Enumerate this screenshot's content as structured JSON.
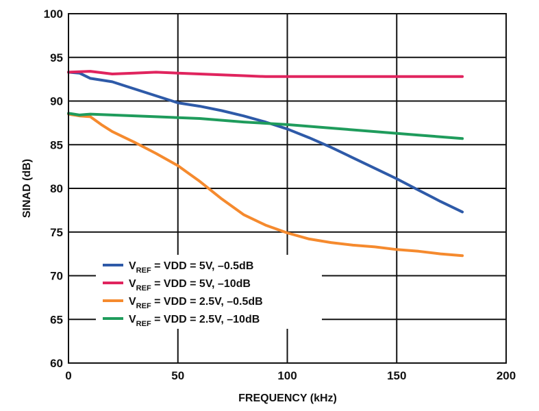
{
  "chart_data": {
    "type": "line",
    "title": "",
    "xlabel": "FREQUENCY (kHz)",
    "ylabel": "SINAD (dB)",
    "xlim": [
      0,
      200
    ],
    "ylim": [
      60,
      100
    ],
    "xticks": [
      "0",
      "50",
      "100",
      "150",
      "200"
    ],
    "yticks": [
      "60",
      "65",
      "70",
      "75",
      "80",
      "85",
      "90",
      "95",
      "100"
    ],
    "grid": true,
    "legend_position": "bottom-left",
    "series": [
      {
        "name_main": "V",
        "name_sub": "REF",
        "name_rest": " = VDD = 5V, –0.5dB",
        "color": "#2e5aa8",
        "x": [
          0,
          5,
          10,
          20,
          30,
          40,
          50,
          60,
          70,
          80,
          90,
          100,
          110,
          120,
          130,
          140,
          150,
          160,
          170,
          180
        ],
        "y": [
          93.3,
          93.2,
          92.6,
          92.2,
          91.4,
          90.6,
          89.8,
          89.4,
          88.9,
          88.3,
          87.6,
          86.8,
          85.8,
          84.7,
          83.5,
          82.3,
          81.1,
          79.8,
          78.5,
          77.3
        ]
      },
      {
        "name_main": "V",
        "name_sub": "REF",
        "name_rest": " = VDD = 5V, –10dB",
        "color": "#e0245e",
        "x": [
          0,
          10,
          20,
          30,
          40,
          50,
          60,
          70,
          80,
          90,
          100,
          120,
          140,
          160,
          180
        ],
        "y": [
          93.3,
          93.4,
          93.1,
          93.2,
          93.3,
          93.2,
          93.1,
          93.0,
          92.9,
          92.8,
          92.8,
          92.8,
          92.8,
          92.8,
          92.8
        ]
      },
      {
        "name_main": "V",
        "name_sub": "REF",
        "name_rest": " = VDD = 2.5V, –0.5dB",
        "color": "#f58a2e",
        "x": [
          0,
          5,
          10,
          15,
          20,
          30,
          40,
          50,
          60,
          70,
          80,
          90,
          100,
          110,
          120,
          130,
          140,
          150,
          160,
          170,
          180
        ],
        "y": [
          88.5,
          88.3,
          88.2,
          87.3,
          86.5,
          85.3,
          84.0,
          82.6,
          80.8,
          78.8,
          77.0,
          75.8,
          74.9,
          74.2,
          73.8,
          73.5,
          73.3,
          73.0,
          72.8,
          72.5,
          72.3
        ]
      },
      {
        "name_main": "V",
        "name_sub": "REF",
        "name_rest": " = VDD = 2.5V, –10dB",
        "color": "#1f9c5c",
        "x": [
          0,
          5,
          10,
          20,
          40,
          60,
          80,
          100,
          120,
          140,
          160,
          180
        ],
        "y": [
          88.6,
          88.4,
          88.5,
          88.4,
          88.2,
          88.0,
          87.6,
          87.3,
          86.9,
          86.5,
          86.1,
          85.7
        ]
      }
    ]
  }
}
